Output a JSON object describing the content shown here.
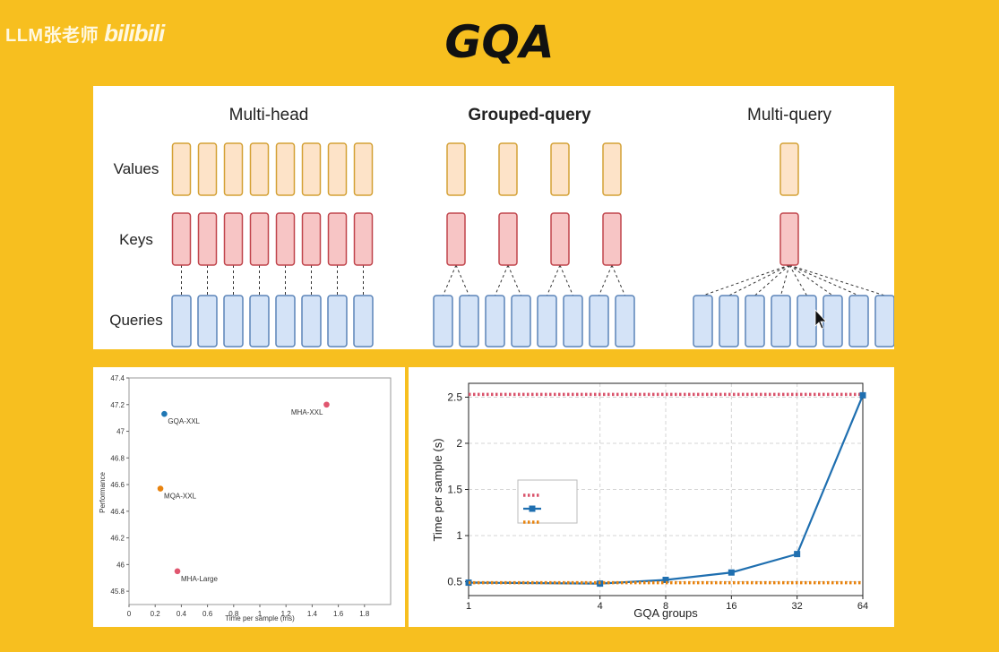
{
  "header": {
    "watermark_text": "LLM张老师",
    "watermark_logo": "bilibili",
    "title": "GQA"
  },
  "attention_diagram": {
    "row_labels": {
      "values": "Values",
      "keys": "Keys",
      "queries": "Queries"
    },
    "panels": [
      {
        "label": "Multi-head",
        "bold": false,
        "kv_heads": 8,
        "query_heads": 8
      },
      {
        "label": "Grouped-query",
        "bold": true,
        "kv_heads": 4,
        "query_heads": 8
      },
      {
        "label": "Multi-query",
        "bold": false,
        "kv_heads": 1,
        "query_heads": 8
      }
    ],
    "colors": {
      "values_fill": "#fde3c8",
      "values_stroke": "#d4a135",
      "keys_fill": "#f7c5c5",
      "keys_stroke": "#c0454c",
      "queries_fill": "#d4e3f7",
      "queries_stroke": "#5b84b8"
    }
  },
  "chart_data": [
    {
      "type": "scatter",
      "xlabel": "Time per sample (ms)",
      "ylabel": "Performance",
      "xlim": [
        0,
        2.0
      ],
      "ylim": [
        45.7,
        47.4
      ],
      "xticks": [
        0,
        0.2,
        0.4,
        0.6,
        0.8,
        1,
        1.2,
        1.4,
        1.6,
        1.8
      ],
      "yticks": [
        45.8,
        46,
        46.2,
        46.4,
        46.6,
        46.8,
        47,
        47.2,
        47.4
      ],
      "points": [
        {
          "name": "GQA-XXL",
          "x": 0.27,
          "y": 47.13,
          "color": "#1f77b4"
        },
        {
          "name": "MHA-XXL",
          "x": 1.51,
          "y": 47.2,
          "color": "#e0566f"
        },
        {
          "name": "MQA-XXL",
          "x": 0.24,
          "y": 46.57,
          "color": "#e8830f"
        },
        {
          "name": "MHA-Large",
          "x": 0.37,
          "y": 45.95,
          "color": "#e0566f"
        }
      ]
    },
    {
      "type": "line",
      "xlabel": "GQA groups",
      "ylabel": "Time per sample (s)",
      "x_scale": "log2",
      "xticks": [
        1,
        4,
        8,
        16,
        32,
        64
      ],
      "yticks": [
        0.5,
        1,
        1.5,
        2,
        2.5
      ],
      "ylim": [
        0.35,
        2.65
      ],
      "grid": true,
      "legend_placement": "center-left",
      "series": [
        {
          "style": "dotted",
          "color": "#d9536b",
          "x": [
            1,
            64
          ],
          "y": [
            2.53,
            2.53
          ]
        },
        {
          "style": "solid",
          "color": "#1f6fb0",
          "marker": "square",
          "x": [
            1,
            4,
            8,
            16,
            32,
            64
          ],
          "y": [
            0.49,
            0.48,
            0.52,
            0.6,
            0.8,
            2.52
          ]
        },
        {
          "style": "dotted",
          "color": "#e8830f",
          "x": [
            1,
            64
          ],
          "y": [
            0.49,
            0.49
          ]
        }
      ]
    }
  ]
}
